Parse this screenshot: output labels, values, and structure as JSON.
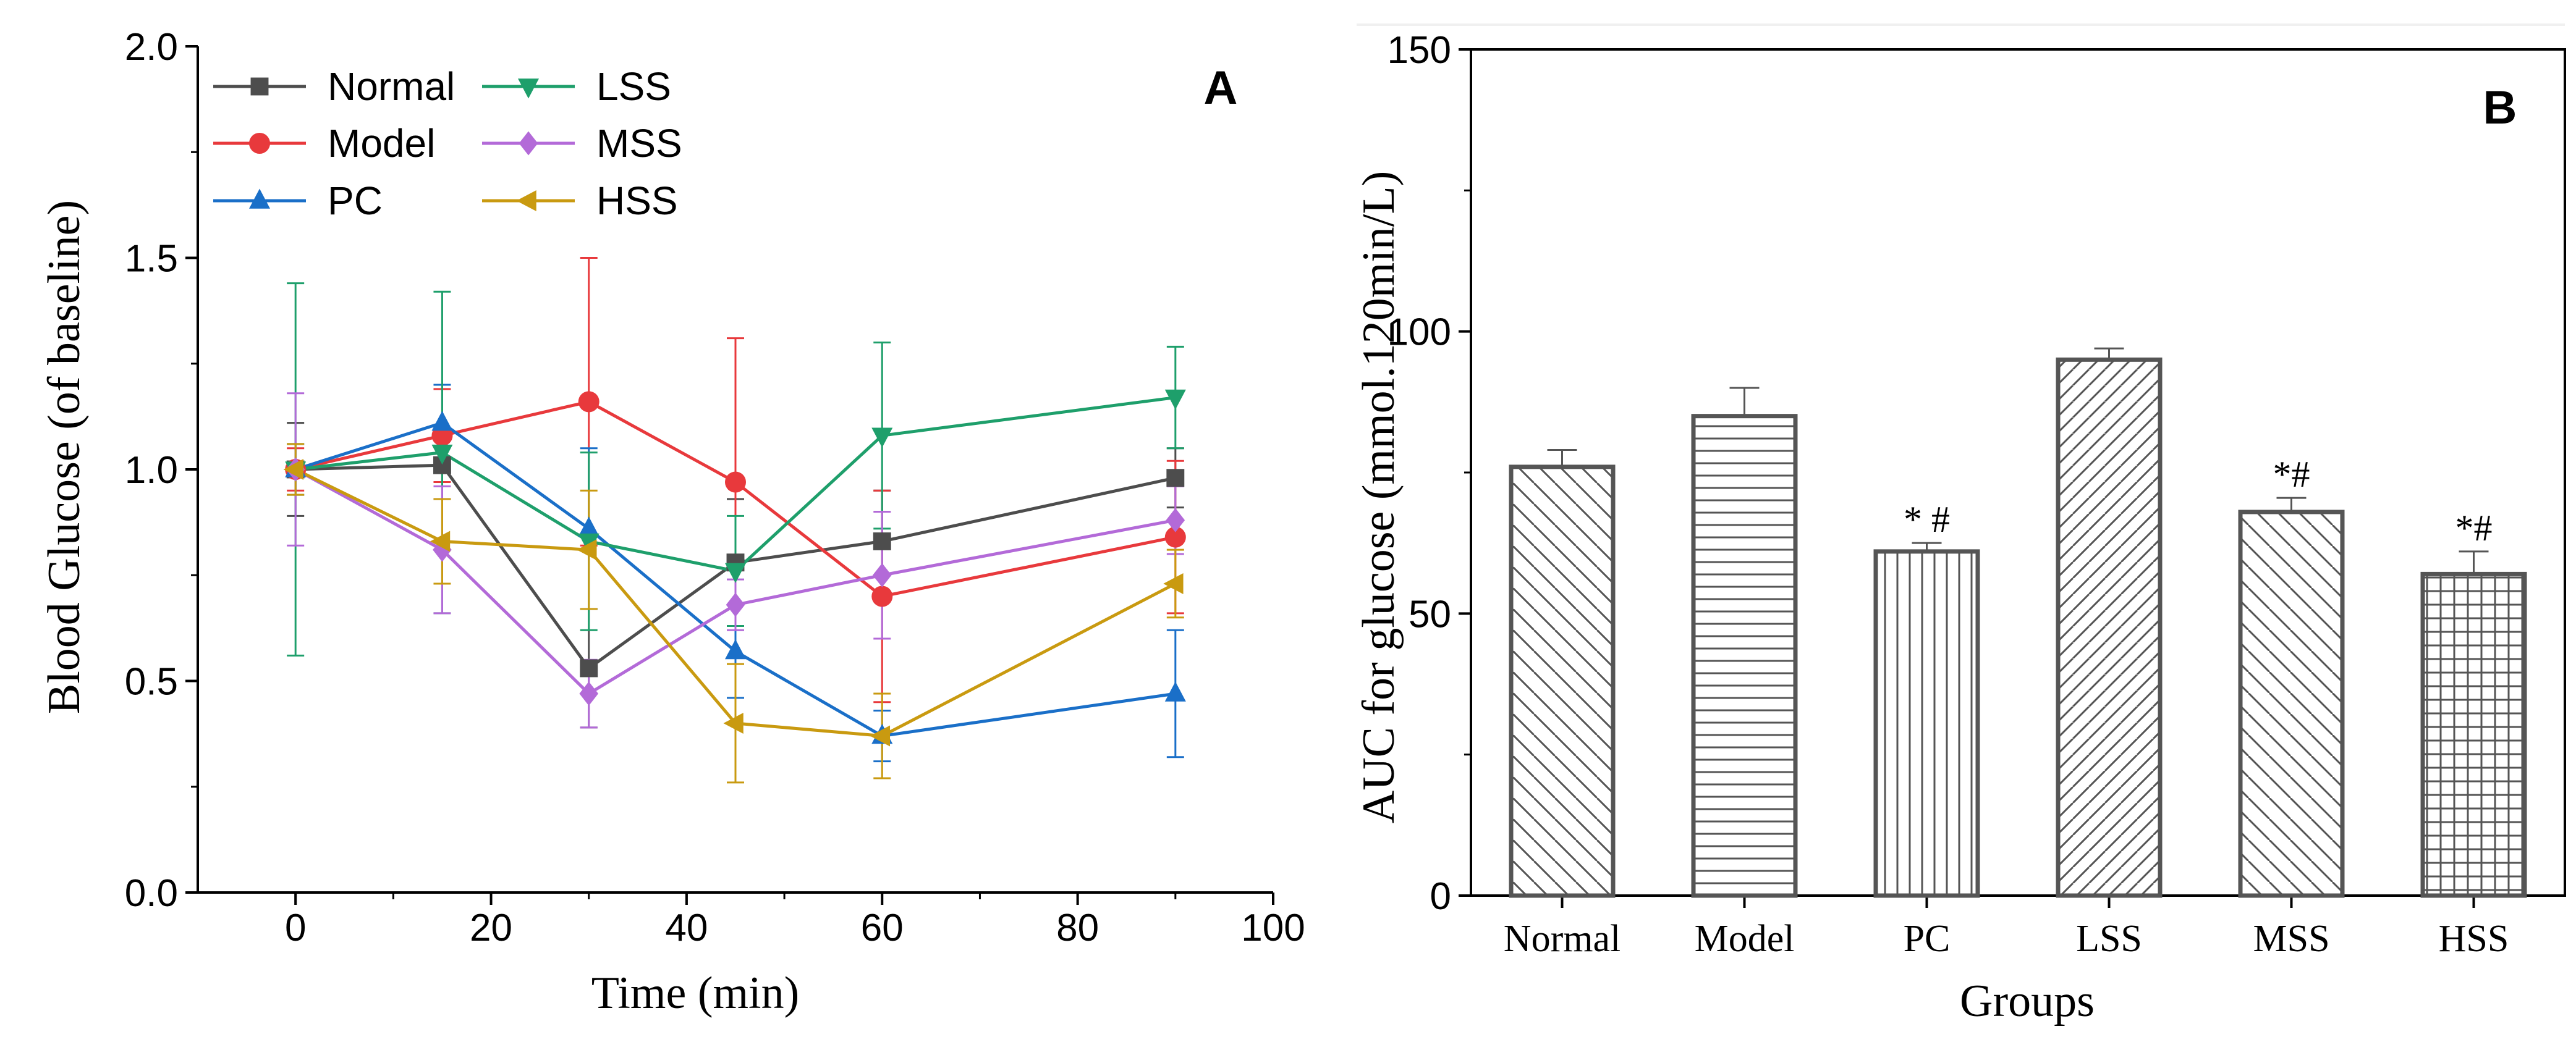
{
  "chart_data": [
    {
      "type": "line",
      "panel": "A",
      "xlabel": "Time (min)",
      "ylabel": "Blood Glucose (of baseline)",
      "xlim": [
        -10,
        100
      ],
      "ylim": [
        0,
        2.0
      ],
      "xticks": [
        0,
        20,
        40,
        60,
        80,
        100
      ],
      "xtick_labels": [
        "0",
        "20",
        "40",
        "60",
        "80",
        "100"
      ],
      "yticks": [
        0,
        0.5,
        1.0,
        1.5,
        2.0
      ],
      "ytick_labels": [
        "0.0",
        "0.5",
        "1.0",
        "1.5",
        "2.0"
      ],
      "grid": false,
      "legend_position": "top-left",
      "x": [
        0,
        15,
        30,
        45,
        60,
        90
      ],
      "series": [
        {
          "name": "Normal",
          "color": "#4d4d4d",
          "marker": "square",
          "values": [
            1.0,
            1.01,
            0.53,
            0.78,
            0.83,
            0.98
          ],
          "errors": [
            0.11,
            0.08,
            0.14,
            0.15,
            0.12,
            0.07
          ]
        },
        {
          "name": "Model",
          "color": "#e8393c",
          "marker": "circle",
          "values": [
            1.0,
            1.08,
            1.16,
            0.97,
            0.7,
            0.84
          ],
          "errors": [
            0.05,
            0.11,
            0.34,
            0.34,
            0.25,
            0.18
          ]
        },
        {
          "name": "PC",
          "color": "#1a6fc8",
          "marker": "triangle-up",
          "values": [
            1.0,
            1.11,
            0.86,
            0.57,
            0.37,
            0.47
          ],
          "errors": [
            0.06,
            0.09,
            0.19,
            0.11,
            0.06,
            0.15
          ]
        },
        {
          "name": "LSS",
          "color": "#1e9f6b",
          "marker": "triangle-down",
          "values": [
            1.0,
            1.04,
            0.83,
            0.76,
            1.08,
            1.17
          ],
          "errors": [
            0.44,
            0.38,
            0.21,
            0.13,
            0.22,
            0.12
          ]
        },
        {
          "name": "MSS",
          "color": "#b36ad8",
          "marker": "diamond",
          "values": [
            1.0,
            0.81,
            0.47,
            0.68,
            0.75,
            0.88
          ],
          "errors": [
            0.18,
            0.15,
            0.08,
            0.06,
            0.15,
            0.08
          ]
        },
        {
          "name": "HSS",
          "color": "#c99a10",
          "marker": "triangle-left",
          "values": [
            1.0,
            0.83,
            0.81,
            0.4,
            0.37,
            0.73
          ],
          "errors": [
            0.06,
            0.1,
            0.14,
            0.14,
            0.1,
            0.08
          ]
        }
      ]
    },
    {
      "type": "bar",
      "panel": "B",
      "xlabel": "Groups",
      "ylabel": "AUC for glucose (mmol.120min/L)",
      "ylim": [
        0,
        150
      ],
      "yticks": [
        0,
        50,
        100,
        150
      ],
      "ytick_labels": [
        "0",
        "50",
        "100",
        "150"
      ],
      "grid": false,
      "categories": [
        "Normal",
        "Model",
        "PC",
        "LSS",
        "MSS",
        "HSS"
      ],
      "values": [
        76,
        85,
        61,
        95,
        68,
        57
      ],
      "errors": [
        3,
        5,
        1.5,
        2,
        2.5,
        4
      ],
      "patterns": [
        "diag-back",
        "horizontal",
        "vertical",
        "diag-forward",
        "diag-back",
        "grid"
      ],
      "annotations": [
        "",
        "",
        "* #",
        "",
        "*#",
        "*#"
      ]
    }
  ],
  "colors": {
    "axis": "#000000",
    "bar_stroke": "#555555",
    "hatch": "#555555"
  }
}
